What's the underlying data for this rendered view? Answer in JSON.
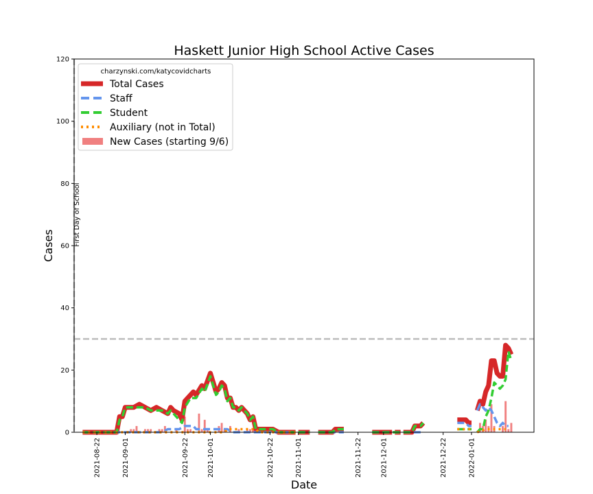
{
  "chart_data": {
    "type": "line",
    "title": "Haskett Junior High School Active Cases",
    "xlabel": "Date",
    "ylabel": "Cases",
    "x_range": [
      "2021-08-14",
      "2022-01-23"
    ],
    "ylim": [
      0,
      120
    ],
    "y_ticks": [
      0,
      20,
      40,
      60,
      80,
      100,
      120
    ],
    "x_ticks": [
      "2021-08-22",
      "2021-09-01",
      "2021-09-22",
      "2021-10-01",
      "2021-10-22",
      "2021-11-01",
      "2021-11-22",
      "2021-12-01",
      "2021-12-22",
      "2022-01-01"
    ],
    "grid": false,
    "legend": {
      "placement": "top-left",
      "title": "charzynski.com/katycovidcharts",
      "entries": [
        "Total Cases",
        "Staff",
        "Student",
        "Auxiliary (not in Total)",
        "New Cases (starting 9/6)"
      ]
    },
    "annotations": {
      "vline_date": "2021-08-14",
      "vline_label": "First Day of School",
      "hline_value": 30
    },
    "colors": {
      "total": "#d62728",
      "staff": "#6495ed",
      "student": "#32cd32",
      "auxiliary": "#ff8c00",
      "new_cases": "#f08080",
      "reference": "#bbbbbb"
    },
    "series": [
      {
        "name": "Total Cases",
        "segments": [
          [
            [
              "2021-08-17",
              0
            ],
            [
              "2021-08-27",
              0
            ],
            [
              "2021-08-29",
              0
            ],
            [
              "2021-08-30",
              5
            ],
            [
              "2021-08-31",
              5
            ],
            [
              "2021-09-01",
              8
            ],
            [
              "2021-09-04",
              8
            ],
            [
              "2021-09-06",
              9
            ],
            [
              "2021-09-08",
              8
            ],
            [
              "2021-09-10",
              7
            ],
            [
              "2021-09-12",
              8
            ],
            [
              "2021-09-14",
              7
            ],
            [
              "2021-09-16",
              6
            ],
            [
              "2021-09-17",
              8
            ],
            [
              "2021-09-18",
              7
            ],
            [
              "2021-09-20",
              6
            ],
            [
              "2021-09-21",
              4
            ],
            [
              "2021-09-22",
              10
            ],
            [
              "2021-09-24",
              12
            ],
            [
              "2021-09-25",
              13
            ],
            [
              "2021-09-26",
              12
            ],
            [
              "2021-09-28",
              15
            ],
            [
              "2021-09-29",
              14
            ],
            [
              "2021-10-01",
              19
            ],
            [
              "2021-10-02",
              16
            ],
            [
              "2021-10-03",
              13
            ],
            [
              "2021-10-04",
              14
            ],
            [
              "2021-10-05",
              16
            ],
            [
              "2021-10-06",
              15
            ],
            [
              "2021-10-07",
              11
            ],
            [
              "2021-10-08",
              11
            ],
            [
              "2021-10-09",
              8
            ],
            [
              "2021-10-10",
              8
            ],
            [
              "2021-10-11",
              7
            ],
            [
              "2021-10-12",
              8
            ],
            [
              "2021-10-13",
              7
            ],
            [
              "2021-10-14",
              6
            ],
            [
              "2021-10-15",
              4
            ],
            [
              "2021-10-16",
              5
            ],
            [
              "2021-10-17",
              1
            ],
            [
              "2021-10-23",
              1
            ],
            [
              "2021-10-25",
              0
            ],
            [
              "2021-10-31",
              0
            ]
          ],
          [
            [
              "2021-11-01",
              0
            ],
            [
              "2021-11-05",
              0
            ]
          ],
          [
            [
              "2021-11-08",
              0
            ],
            [
              "2021-11-13",
              0
            ],
            [
              "2021-11-14",
              1
            ],
            [
              "2021-11-17",
              1
            ]
          ],
          [
            [
              "2021-11-27",
              0
            ],
            [
              "2021-12-04",
              0
            ]
          ],
          [
            [
              "2021-12-05",
              0
            ],
            [
              "2021-12-07",
              0
            ]
          ],
          [
            [
              "2021-12-08",
              0
            ],
            [
              "2021-12-11",
              0
            ],
            [
              "2021-12-12",
              2
            ],
            [
              "2021-12-14",
              2
            ],
            [
              "2021-12-15",
              3
            ]
          ],
          [
            [
              "2021-12-27",
              4
            ],
            [
              "2021-12-30",
              4
            ],
            [
              "2021-12-31",
              3
            ],
            [
              "2022-01-01",
              3
            ]
          ],
          [
            [
              "2022-01-03",
              7
            ],
            [
              "2022-01-04",
              10
            ],
            [
              "2022-01-05",
              9
            ],
            [
              "2022-01-06",
              13
            ],
            [
              "2022-01-07",
              15
            ],
            [
              "2022-01-08",
              23
            ],
            [
              "2022-01-09",
              23
            ],
            [
              "2022-01-10",
              19
            ],
            [
              "2022-01-11",
              18
            ],
            [
              "2022-01-12",
              18
            ],
            [
              "2022-01-13",
              28
            ],
            [
              "2022-01-14",
              27
            ],
            [
              "2022-01-15",
              25
            ]
          ]
        ]
      },
      {
        "name": "Staff",
        "segments": [
          [
            [
              "2021-08-17",
              0
            ],
            [
              "2021-09-14",
              0
            ],
            [
              "2021-09-16",
              1
            ],
            [
              "2021-09-18",
              1
            ],
            [
              "2021-09-20",
              1
            ],
            [
              "2021-09-22",
              2
            ],
            [
              "2021-09-25",
              2
            ],
            [
              "2021-09-26",
              1
            ],
            [
              "2021-09-29",
              1
            ],
            [
              "2021-10-01",
              1
            ],
            [
              "2021-10-04",
              1
            ],
            [
              "2021-10-07",
              1
            ],
            [
              "2021-10-09",
              0
            ],
            [
              "2021-10-31",
              0
            ]
          ],
          [
            [
              "2021-11-01",
              0
            ],
            [
              "2021-11-05",
              0
            ]
          ],
          [
            [
              "2021-11-08",
              0
            ],
            [
              "2021-11-17",
              0
            ]
          ],
          [
            [
              "2021-11-27",
              0
            ],
            [
              "2021-12-07",
              0
            ]
          ],
          [
            [
              "2021-12-08",
              0
            ],
            [
              "2021-12-15",
              0
            ]
          ],
          [
            [
              "2021-12-27",
              3
            ],
            [
              "2021-12-30",
              3
            ],
            [
              "2021-12-31",
              2
            ],
            [
              "2022-01-01",
              2
            ]
          ],
          [
            [
              "2022-01-03",
              7
            ],
            [
              "2022-01-04",
              9
            ],
            [
              "2022-01-05",
              8
            ],
            [
              "2022-01-06",
              7
            ],
            [
              "2022-01-07",
              8
            ],
            [
              "2022-01-08",
              7
            ],
            [
              "2022-01-09",
              5
            ],
            [
              "2022-01-10",
              3
            ],
            [
              "2022-01-11",
              2
            ],
            [
              "2022-01-12",
              3
            ],
            [
              "2022-01-13",
              2
            ],
            [
              "2022-01-14",
              2
            ]
          ]
        ]
      },
      {
        "name": "Student",
        "segments": [
          [
            [
              "2021-08-17",
              0
            ],
            [
              "2021-08-29",
              0
            ],
            [
              "2021-08-30",
              4
            ],
            [
              "2021-08-31",
              5
            ],
            [
              "2021-09-01",
              8
            ],
            [
              "2021-09-04",
              8
            ],
            [
              "2021-09-06",
              8
            ],
            [
              "2021-09-08",
              8
            ],
            [
              "2021-09-10",
              7
            ],
            [
              "2021-09-12",
              7
            ],
            [
              "2021-09-14",
              7
            ],
            [
              "2021-09-16",
              6
            ],
            [
              "2021-09-17",
              7
            ],
            [
              "2021-09-18",
              6
            ],
            [
              "2021-09-20",
              4
            ],
            [
              "2021-09-21",
              3
            ],
            [
              "2021-09-22",
              8
            ],
            [
              "2021-09-24",
              11
            ],
            [
              "2021-09-25",
              11
            ],
            [
              "2021-09-26",
              11
            ],
            [
              "2021-09-28",
              14
            ],
            [
              "2021-09-29",
              13
            ],
            [
              "2021-10-01",
              18
            ],
            [
              "2021-10-02",
              15
            ],
            [
              "2021-10-03",
              12
            ],
            [
              "2021-10-04",
              13
            ],
            [
              "2021-10-05",
              15
            ],
            [
              "2021-10-06",
              14
            ],
            [
              "2021-10-07",
              10
            ],
            [
              "2021-10-08",
              11
            ],
            [
              "2021-10-09",
              8
            ],
            [
              "2021-10-10",
              8
            ],
            [
              "2021-10-11",
              7
            ],
            [
              "2021-10-12",
              8
            ],
            [
              "2021-10-13",
              7
            ],
            [
              "2021-10-14",
              6
            ],
            [
              "2021-10-15",
              4
            ],
            [
              "2021-10-16",
              5
            ],
            [
              "2021-10-17",
              1
            ],
            [
              "2021-10-23",
              1
            ],
            [
              "2021-10-25",
              0
            ],
            [
              "2021-10-31",
              0
            ]
          ],
          [
            [
              "2021-11-01",
              0
            ],
            [
              "2021-11-05",
              0
            ]
          ],
          [
            [
              "2021-11-08",
              0
            ],
            [
              "2021-11-13",
              0
            ],
            [
              "2021-11-14",
              1
            ],
            [
              "2021-11-17",
              1
            ]
          ],
          [
            [
              "2021-11-27",
              0
            ],
            [
              "2021-12-07",
              0
            ]
          ],
          [
            [
              "2021-12-08",
              0
            ],
            [
              "2021-12-11",
              0
            ],
            [
              "2021-12-12",
              2
            ],
            [
              "2021-12-14",
              2
            ],
            [
              "2021-12-15",
              3
            ]
          ],
          [
            [
              "2021-12-27",
              1
            ],
            [
              "2021-12-30",
              1
            ],
            [
              "2021-12-31",
              1
            ],
            [
              "2022-01-01",
              1
            ]
          ],
          [
            [
              "2022-01-03",
              0
            ],
            [
              "2022-01-04",
              1
            ],
            [
              "2022-01-05",
              1
            ],
            [
              "2022-01-06",
              5
            ],
            [
              "2022-01-07",
              7
            ],
            [
              "2022-01-08",
              11
            ],
            [
              "2022-01-09",
              16
            ],
            [
              "2022-01-10",
              15
            ],
            [
              "2022-01-11",
              14
            ],
            [
              "2022-01-12",
              15
            ],
            [
              "2022-01-13",
              17
            ],
            [
              "2022-01-14",
              26
            ],
            [
              "2022-01-15",
              23
            ]
          ]
        ]
      },
      {
        "name": "Auxiliary (not in Total)",
        "segments": [
          [
            [
              "2021-08-17",
              0
            ],
            [
              "2021-10-06",
              0
            ],
            [
              "2021-10-07",
              1
            ],
            [
              "2021-10-17",
              1
            ],
            [
              "2021-10-18",
              0
            ],
            [
              "2021-10-31",
              0
            ]
          ],
          [
            [
              "2021-12-27",
              1
            ],
            [
              "2022-01-01",
              1
            ]
          ],
          [
            [
              "2022-01-03",
              0
            ],
            [
              "2022-01-06",
              1
            ],
            [
              "2022-01-11",
              1
            ],
            [
              "2022-01-13",
              1
            ]
          ]
        ]
      },
      {
        "name": "New Cases (starting 9/6)",
        "bars": [
          [
            "2021-09-03",
            1
          ],
          [
            "2021-09-04",
            1
          ],
          [
            "2021-09-05",
            2
          ],
          [
            "2021-09-08",
            1
          ],
          [
            "2021-09-09",
            1
          ],
          [
            "2021-09-10",
            1
          ],
          [
            "2021-09-13",
            1
          ],
          [
            "2021-09-14",
            1
          ],
          [
            "2021-09-15",
            2
          ],
          [
            "2021-09-19",
            1
          ],
          [
            "2021-09-22",
            5
          ],
          [
            "2021-09-23",
            1
          ],
          [
            "2021-09-24",
            1
          ],
          [
            "2021-09-27",
            6
          ],
          [
            "2021-09-28",
            1
          ],
          [
            "2021-09-29",
            4
          ],
          [
            "2021-09-30",
            1
          ],
          [
            "2021-10-04",
            2
          ],
          [
            "2021-10-05",
            3
          ],
          [
            "2021-10-06",
            1
          ],
          [
            "2021-10-08",
            2
          ],
          [
            "2021-10-11",
            1
          ],
          [
            "2021-10-14",
            1
          ],
          [
            "2021-10-15",
            1
          ],
          [
            "2021-10-16",
            1
          ],
          [
            "2021-10-18",
            1
          ],
          [
            "2022-01-04",
            3
          ],
          [
            "2022-01-05",
            2
          ],
          [
            "2022-01-06",
            4
          ],
          [
            "2022-01-07",
            2
          ],
          [
            "2022-01-08",
            9
          ],
          [
            "2022-01-09",
            2
          ],
          [
            "2022-01-12",
            2
          ],
          [
            "2022-01-13",
            10
          ],
          [
            "2022-01-14",
            1
          ],
          [
            "2022-01-15",
            3
          ]
        ]
      }
    ]
  }
}
